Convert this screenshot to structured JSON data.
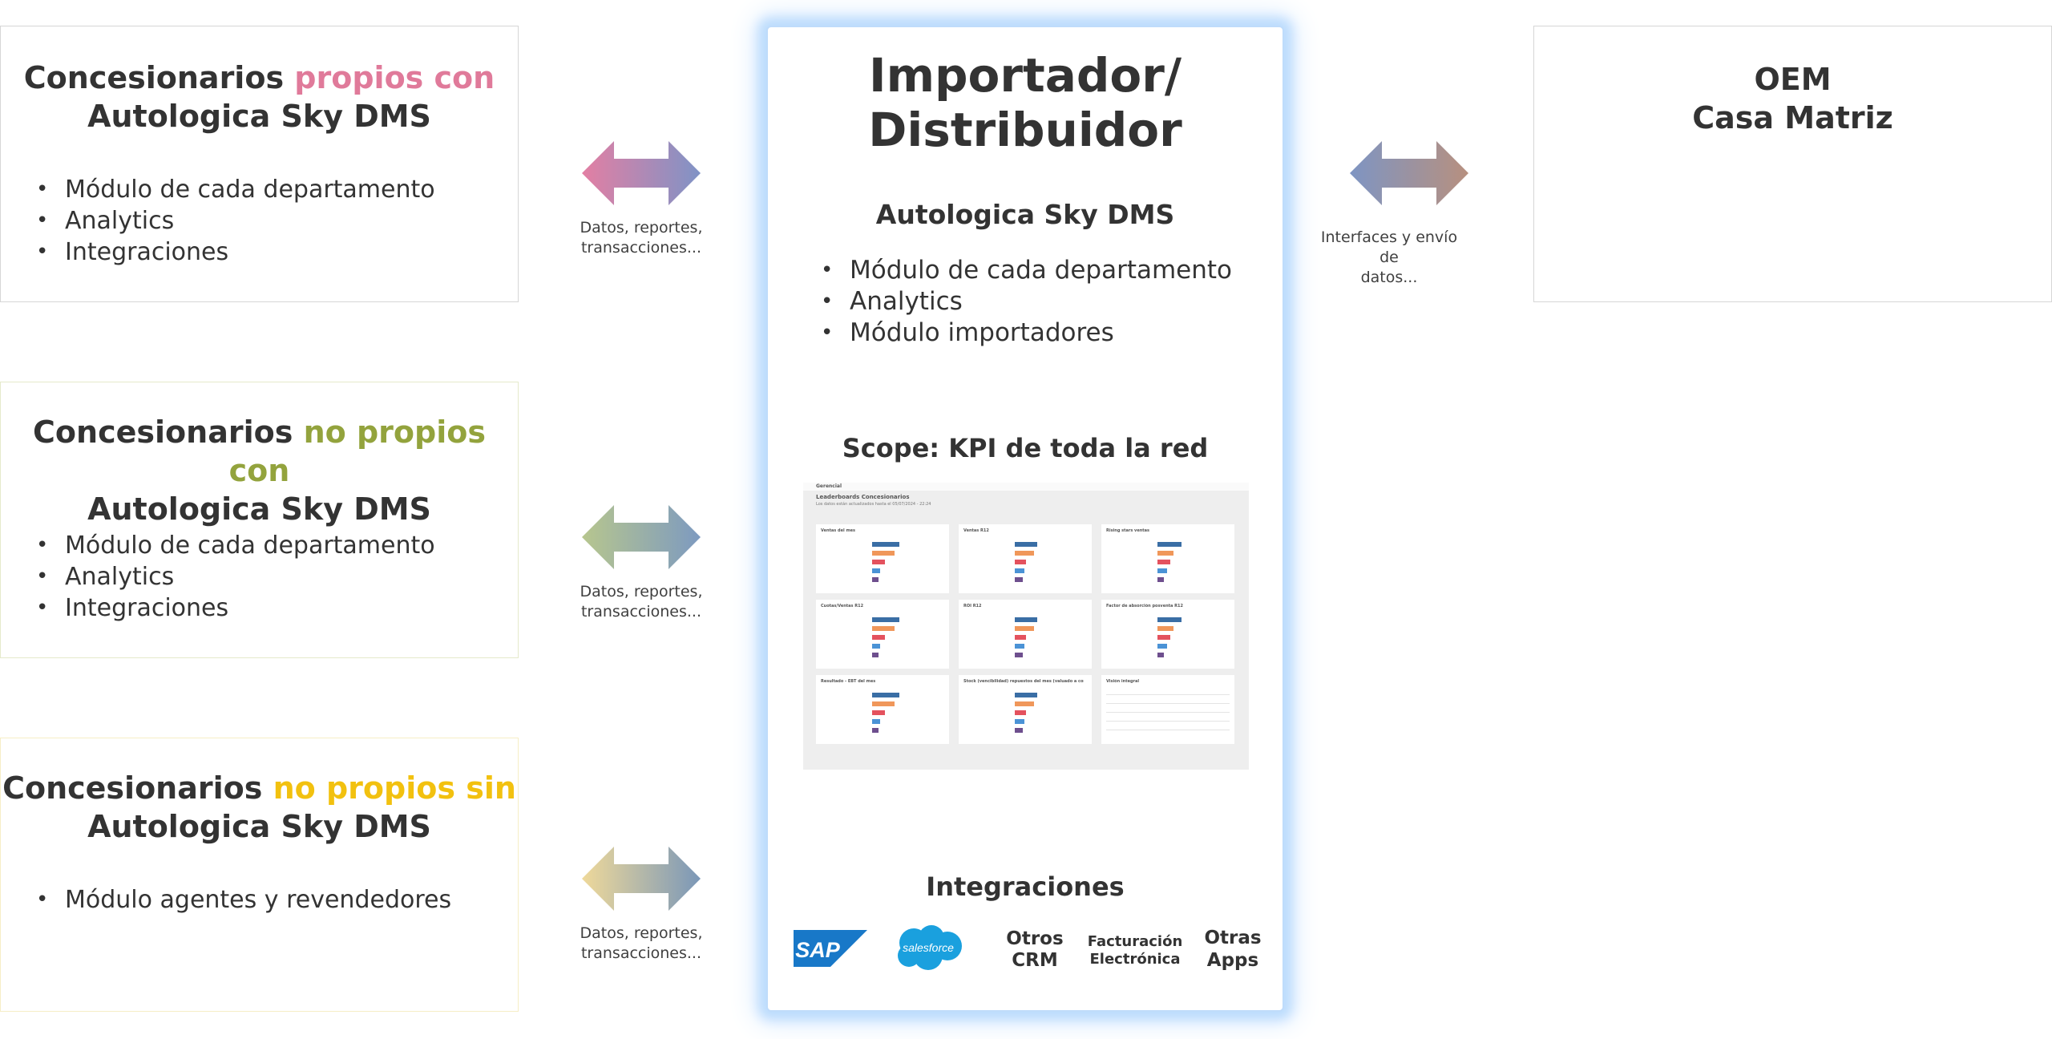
{
  "colors": {
    "pink": "#e07a9a",
    "olive": "#93a33d",
    "yellow": "#f2c10f",
    "text": "#333333",
    "glow": "#bcdcfd",
    "sap_blue": "#1878c8",
    "salesforce_blue": "#1aa0de"
  },
  "left_boxes": [
    {
      "title_pre": "Concesionarios ",
      "title_highlight": "propios con",
      "title_line2": "Autologica Sky DMS",
      "highlight_color": "#e07a9a",
      "border_color": "#d6d6d6",
      "bullets": [
        "Módulo de cada departamento",
        "Analytics",
        "Integraciones"
      ]
    },
    {
      "title_pre": "Concesionarios ",
      "title_highlight": "no propios con",
      "title_line2": "Autologica Sky DMS",
      "highlight_color": "#93a33d",
      "border_color": "#e5eacb",
      "bullets": [
        "Módulo de cada departamento",
        "Analytics",
        "Integraciones"
      ]
    },
    {
      "title_pre": "Concesionarios ",
      "title_highlight": "no propios sin",
      "title_line2": "Autologica Sky DMS",
      "highlight_color": "#f2c10f",
      "border_color": "#f6eec6",
      "bullets": [
        "Módulo agentes y revendedores"
      ]
    }
  ],
  "arrows": [
    {
      "label_line1": "Datos, reportes,",
      "label_line2": "transacciones...",
      "icon": "double-arrow-pink-blue"
    },
    {
      "label_line1": "Datos, reportes,",
      "label_line2": "transacciones...",
      "icon": "double-arrow-green-blue"
    },
    {
      "label_line1": "Datos, reportes,",
      "label_line2": "transacciones...",
      "icon": "double-arrow-yellow-blue"
    },
    {
      "label_line1": "Interfaces y envío de",
      "label_line2": "datos...",
      "icon": "double-arrow-blue-brown"
    }
  ],
  "center": {
    "title_line1": "Importador/",
    "title_line2": "Distribuidor",
    "subtitle": "Autologica Sky DMS",
    "bullets": [
      "Módulo de cada departamento",
      "Analytics",
      "Módulo importadores"
    ],
    "scope": "Scope: KPI de toda la red",
    "integraciones": "Integraciones",
    "dashboard": {
      "app_name": "Gerencial",
      "title": "Leaderboards Concesionarios",
      "subtitle": "Los datos están actualizados hasta el 05/07/2024 - 22:24",
      "cards": [
        "Ventas del mes",
        "Ventas R12",
        "Rising stars ventas",
        "Cuotas/Ventas R12",
        "ROI R12",
        "Factor de absorción posventa R12",
        "Resultado - EBT del mes",
        "Stock (vencibilidad) repuestos del mes (valuado a costo histórico)",
        "Visión integral"
      ]
    },
    "logos": {
      "sap": "SAP",
      "salesforce": "salesforce",
      "otros_crm_1": "Otros",
      "otros_crm_2": "CRM",
      "facturacion_1": "Facturación",
      "facturacion_2": "Electrónica",
      "otras_apps_1": "Otras",
      "otras_apps_2": "Apps"
    }
  },
  "right_box": {
    "title_line1": "OEM",
    "title_line2": "Casa Matriz"
  }
}
